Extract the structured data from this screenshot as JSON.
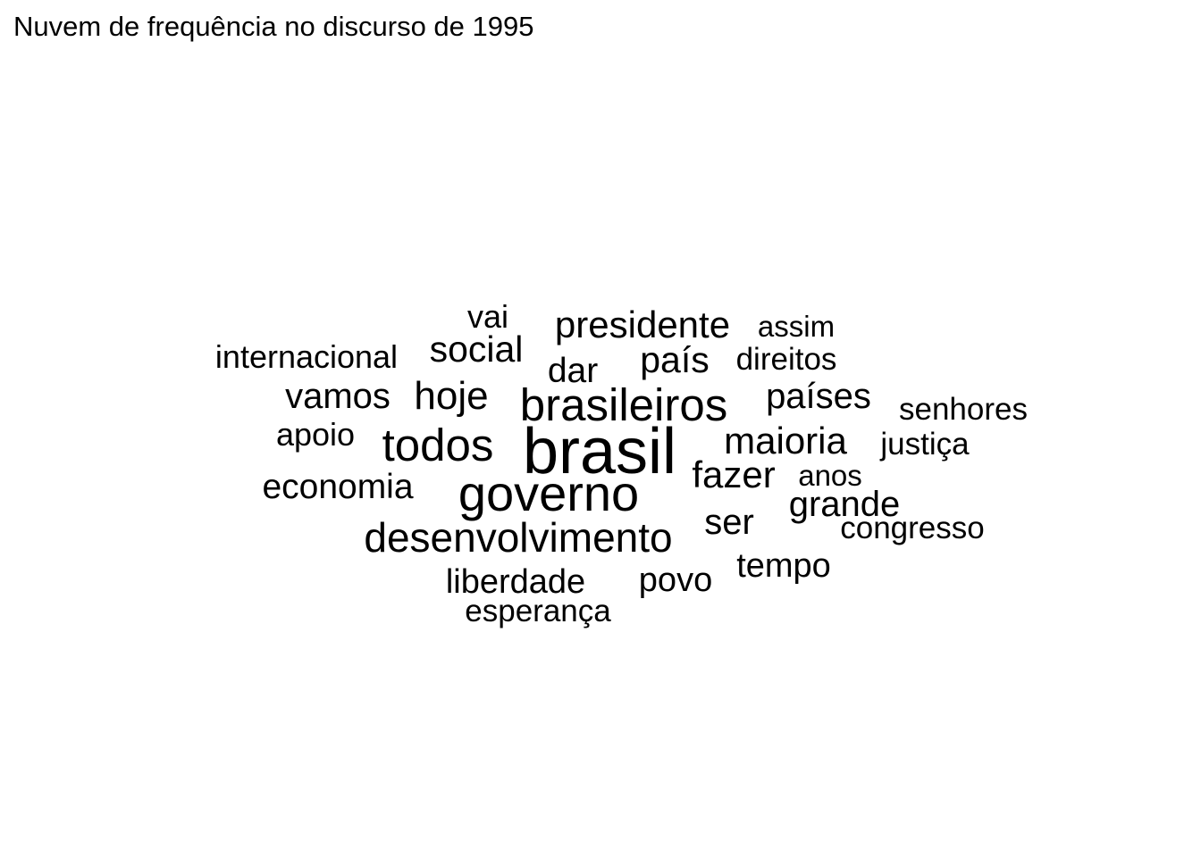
{
  "chart_data": {
    "type": "wordcloud",
    "title": "Nuvem de frequência no discurso de 1995",
    "color": "#000000",
    "words": [
      {
        "text": "brasil",
        "weight": 10
      },
      {
        "text": "governo",
        "weight": 8
      },
      {
        "text": "brasileiros",
        "weight": 7.4
      },
      {
        "text": "todos",
        "weight": 7.4
      },
      {
        "text": "desenvolvimento",
        "weight": 6
      },
      {
        "text": "hoje",
        "weight": 5.9
      },
      {
        "text": "presidente",
        "weight": 5.6
      },
      {
        "text": "maioria",
        "weight": 5.6
      },
      {
        "text": "fazer",
        "weight": 5.6
      },
      {
        "text": "social",
        "weight": 5.4
      },
      {
        "text": "país",
        "weight": 5.4
      },
      {
        "text": "vamos",
        "weight": 5.4
      },
      {
        "text": "países",
        "weight": 5.4
      },
      {
        "text": "grande",
        "weight": 5.4
      },
      {
        "text": "ser",
        "weight": 5.4
      },
      {
        "text": "economia",
        "weight": 5.2
      },
      {
        "text": "dar",
        "weight": 5.2
      },
      {
        "text": "tempo",
        "weight": 5
      },
      {
        "text": "liberdade",
        "weight": 5
      },
      {
        "text": "povo",
        "weight": 5
      },
      {
        "text": "vai",
        "weight": 4.8
      },
      {
        "text": "apoio",
        "weight": 4.8
      },
      {
        "text": "internacional",
        "weight": 4.8
      },
      {
        "text": "direitos",
        "weight": 4.6
      },
      {
        "text": "senhores",
        "weight": 4.6
      },
      {
        "text": "justiça",
        "weight": 4.6
      },
      {
        "text": "congresso",
        "weight": 4.6
      },
      {
        "text": "esperança",
        "weight": 4.6
      },
      {
        "text": "anos",
        "weight": 4.4
      },
      {
        "text": "assim",
        "weight": 4.4
      }
    ]
  }
}
